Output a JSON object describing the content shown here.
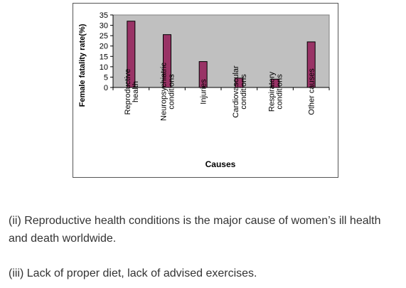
{
  "chart_data": {
    "type": "bar",
    "categories": [
      [
        "Reproductive",
        "health"
      ],
      [
        "Neuropsychiatric",
        "conditions"
      ],
      [
        "Injuries"
      ],
      [
        "Cardiovascular",
        "conditions"
      ],
      [
        "Respiratory",
        "conditions"
      ],
      [
        "Other causes"
      ]
    ],
    "values": [
      32,
      25.5,
      12.5,
      4.5,
      4,
      22
    ],
    "xlabel": "Causes",
    "ylabel": "Female fatality rate(%)",
    "ylim": [
      0,
      35
    ],
    "yticks": [
      0,
      5,
      10,
      15,
      20,
      25,
      30,
      35
    ],
    "grid": false,
    "colors": {
      "bar_fill": "#993366",
      "bar_stroke": "#000000",
      "plot_bg": "#c0c0c0"
    }
  },
  "text": {
    "para_ii_line1": "(ii) Reproductive health conditions is the major cause of women’s ill health",
    "para_ii_line2": "and death worldwide.",
    "para_iii": "(iii) Lack of proper diet, lack of advised exercises."
  }
}
